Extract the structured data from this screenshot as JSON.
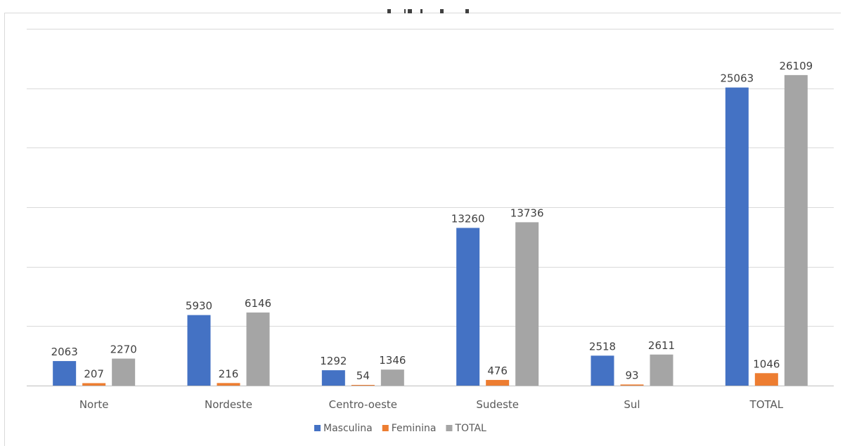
{
  "chart_data": {
    "type": "bar",
    "categories": [
      "Norte",
      "Nordeste",
      "Centro-oeste",
      "Sudeste",
      "Sul",
      "TOTAL"
    ],
    "series": [
      {
        "name": "Masculina",
        "color": "#4472c4",
        "values": [
          2063,
          5930,
          1292,
          13260,
          2518,
          25063
        ]
      },
      {
        "name": "Feminina",
        "color": "#ed7d31",
        "values": [
          207,
          216,
          54,
          476,
          93,
          1046
        ]
      },
      {
        "name": "TOTAL",
        "color": "#a5a5a5",
        "values": [
          2270,
          6146,
          1346,
          13736,
          2611,
          26109
        ]
      }
    ],
    "ylim": [
      0,
      30000
    ],
    "grid": true,
    "legend_position": "bottom"
  }
}
